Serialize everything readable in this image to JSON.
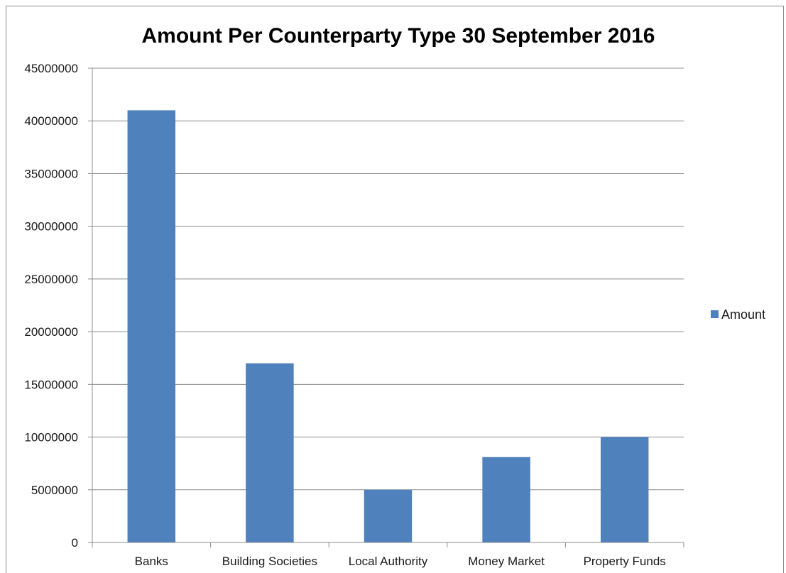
{
  "chart_data": {
    "type": "bar",
    "title": "Amount Per Counterparty Type 30 September 2016",
    "categories": [
      "Banks",
      "Building Societies",
      "Local Authority",
      "Money Market",
      "Property Funds"
    ],
    "series": [
      {
        "name": "Amount",
        "values": [
          41000000,
          17000000,
          5000000,
          8100000,
          10000000
        ],
        "color": "#4f81bd"
      }
    ],
    "ylim": [
      0,
      45000000
    ],
    "yticks": [
      "0",
      "5000000",
      "10000000",
      "15000000",
      "20000000",
      "25000000",
      "30000000",
      "35000000",
      "40000000",
      "45000000"
    ],
    "xlabel": "",
    "ylabel": "",
    "grid": true,
    "legend_position": "right"
  }
}
